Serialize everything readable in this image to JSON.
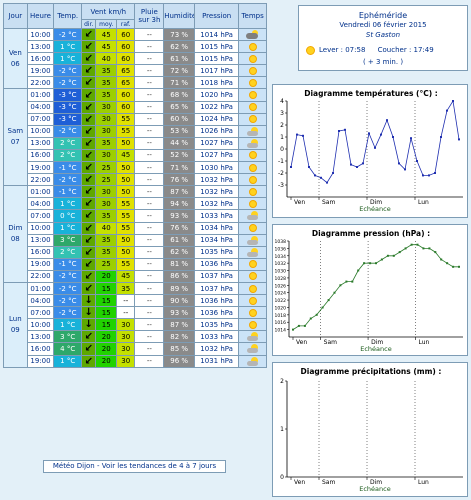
{
  "table": {
    "headers": {
      "day": "Jour",
      "time": "Heure",
      "temp": "Temp.",
      "wind": "Vent km/h",
      "dir": "dir.",
      "avg": "moy.",
      "gust": "raf.",
      "rain": "Pluie sur 3h",
      "humidity": "Humidité",
      "pressure": "Pression",
      "weather": "Temps"
    },
    "days": [
      {
        "label": "Ven 06",
        "rows": [
          {
            "time": "10:00",
            "temp": "-2 °C",
            "dir": "↙",
            "avg": "45",
            "gust": "60",
            "rain": "--",
            "hum": "73 %",
            "pres": "1014 hPa",
            "icon": "cloudy"
          },
          {
            "time": "13:00",
            "temp": "1 °C",
            "dir": "↙",
            "avg": "45",
            "gust": "60",
            "rain": "--",
            "hum": "62 %",
            "pres": "1015 hPa",
            "icon": "sun"
          },
          {
            "time": "16:00",
            "temp": "1 °C",
            "dir": "↙",
            "avg": "40",
            "gust": "60",
            "rain": "--",
            "hum": "61 %",
            "pres": "1015 hPa",
            "icon": "sun"
          },
          {
            "time": "19:00",
            "temp": "-2 °C",
            "dir": "↙",
            "avg": "35",
            "gust": "65",
            "rain": "--",
            "hum": "72 %",
            "pres": "1017 hPa",
            "icon": "sun"
          },
          {
            "time": "22:00",
            "temp": "-2 °C",
            "dir": "↙",
            "avg": "35",
            "gust": "65",
            "rain": "--",
            "hum": "71 %",
            "pres": "1018 hPa",
            "icon": "sun"
          }
        ]
      },
      {
        "label": "Sam 07",
        "rows": [
          {
            "time": "01:00",
            "temp": "-3 °C",
            "dir": "↙",
            "avg": "35",
            "gust": "60",
            "rain": "--",
            "hum": "68 %",
            "pres": "1020 hPa",
            "icon": "sun"
          },
          {
            "time": "04:00",
            "temp": "-3 °C",
            "dir": "↙",
            "avg": "30",
            "gust": "60",
            "rain": "--",
            "hum": "65 %",
            "pres": "1022 hPa",
            "icon": "sun"
          },
          {
            "time": "07:00",
            "temp": "-3 °C",
            "dir": "↙",
            "avg": "30",
            "gust": "55",
            "rain": "--",
            "hum": "60 %",
            "pres": "1024 hPa",
            "icon": "sun"
          },
          {
            "time": "10:00",
            "temp": "-2 °C",
            "dir": "↙",
            "avg": "30",
            "gust": "55",
            "rain": "--",
            "hum": "53 %",
            "pres": "1026 hPa",
            "icon": "partly"
          },
          {
            "time": "13:00",
            "temp": "2 °C",
            "dir": "↙",
            "avg": "35",
            "gust": "50",
            "rain": "--",
            "hum": "44 %",
            "pres": "1027 hPa",
            "icon": "partly"
          },
          {
            "time": "16:00",
            "temp": "2 °C",
            "dir": "↙",
            "avg": "30",
            "gust": "45",
            "rain": "--",
            "hum": "52 %",
            "pres": "1027 hPa",
            "icon": "sun"
          },
          {
            "time": "19:00",
            "temp": "-1 °C",
            "dir": "↙",
            "avg": "25",
            "gust": "50",
            "rain": "--",
            "hum": "71 %",
            "pres": "1030 hPa",
            "icon": "sun"
          },
          {
            "time": "22:00",
            "temp": "-2 °C",
            "dir": "↙",
            "avg": "25",
            "gust": "50",
            "rain": "--",
            "hum": "76 %",
            "pres": "1032 hPa",
            "icon": "sun"
          }
        ]
      },
      {
        "label": "Dim 08",
        "rows": [
          {
            "time": "01:00",
            "temp": "-1 °C",
            "dir": "↙",
            "avg": "30",
            "gust": "50",
            "rain": "--",
            "hum": "87 %",
            "pres": "1032 hPa",
            "icon": "sun"
          },
          {
            "time": "04:00",
            "temp": "1 °C",
            "dir": "↙",
            "avg": "30",
            "gust": "55",
            "rain": "--",
            "hum": "94 %",
            "pres": "1032 hPa",
            "icon": "sun"
          },
          {
            "time": "07:00",
            "temp": "0 °C",
            "dir": "↙",
            "avg": "35",
            "gust": "55",
            "rain": "--",
            "hum": "93 %",
            "pres": "1033 hPa",
            "icon": "partly"
          },
          {
            "time": "10:00",
            "temp": "1 °C",
            "dir": "↙",
            "avg": "40",
            "gust": "55",
            "rain": "--",
            "hum": "76 %",
            "pres": "1034 hPa",
            "icon": "sun"
          },
          {
            "time": "13:00",
            "temp": "3 °C",
            "dir": "↙",
            "avg": "35",
            "gust": "50",
            "rain": "--",
            "hum": "61 %",
            "pres": "1034 hPa",
            "icon": "partly"
          },
          {
            "time": "16:00",
            "temp": "2 °C",
            "dir": "↙",
            "avg": "35",
            "gust": "50",
            "rain": "--",
            "hum": "62 %",
            "pres": "1035 hPa",
            "icon": "partly"
          },
          {
            "time": "19:00",
            "temp": "-1 °C",
            "dir": "↙",
            "avg": "25",
            "gust": "55",
            "rain": "--",
            "hum": "81 %",
            "pres": "1036 hPa",
            "icon": "sun"
          },
          {
            "time": "22:00",
            "temp": "-2 °C",
            "dir": "↙",
            "avg": "20",
            "gust": "45",
            "rain": "--",
            "hum": "86 %",
            "pres": "1037 hPa",
            "icon": "sun"
          }
        ]
      },
      {
        "label": "Lun 09",
        "rows": [
          {
            "time": "01:00",
            "temp": "-2 °C",
            "dir": "↙",
            "avg": "15",
            "gust": "35",
            "rain": "--",
            "hum": "89 %",
            "pres": "1037 hPa",
            "icon": "sun"
          },
          {
            "time": "04:00",
            "temp": "-2 °C",
            "dir": "↓",
            "avg": "15",
            "gust": "--",
            "rain": "--",
            "hum": "90 %",
            "pres": "1036 hPa",
            "icon": "sun"
          },
          {
            "time": "07:00",
            "temp": "-2 °C",
            "dir": "↓",
            "avg": "15",
            "gust": "--",
            "rain": "--",
            "hum": "93 %",
            "pres": "1036 hPa",
            "icon": "sun"
          },
          {
            "time": "10:00",
            "temp": "1 °C",
            "dir": "↓",
            "avg": "15",
            "gust": "30",
            "rain": "--",
            "hum": "87 %",
            "pres": "1035 hPa",
            "icon": "sun"
          },
          {
            "time": "13:00",
            "temp": "3 °C",
            "dir": "↙",
            "avg": "20",
            "gust": "30",
            "rain": "--",
            "hum": "82 %",
            "pres": "1033 hPa",
            "icon": "partly"
          },
          {
            "time": "16:00",
            "temp": "4 °C",
            "dir": "↙",
            "avg": "20",
            "gust": "30",
            "rain": "--",
            "hum": "85 %",
            "pres": "1032 hPa",
            "icon": "partly"
          },
          {
            "time": "19:00",
            "temp": "1 °C",
            "dir": "↙",
            "avg": "20",
            "gust": "30",
            "rain": "--",
            "hum": "96 %",
            "pres": "1031 hPa",
            "icon": "partly"
          }
        ]
      }
    ]
  },
  "footer_link": "Météo Dijon - Voir les tendances de 4 à 7 jours",
  "ephemeride": {
    "title": "Ephéméride",
    "date": "Vendredi 06 février 2015",
    "saint": "St Gaston",
    "sunrise": "Lever : 07:58",
    "sunset": "Coucher : 17:49",
    "delta": "( + 3 min. )"
  },
  "colors": {
    "temp_deep_cold": "#1f5fd6",
    "temp_cold": "#3a8ce8",
    "temp_zero": "#18b2d9",
    "temp_mild": "#33c2b2",
    "temp_warm": "#2ea86a",
    "wind_green": "#21d200",
    "wind_yellowgreen": "#9ccf00",
    "wind_lightgreen": "#c4e000",
    "gust_yellow": "#e1e100",
    "chart_line_temp": "#1f2fb0",
    "chart_line_pres": "#2a7a2a"
  },
  "chart_data": [
    {
      "type": "line",
      "title": "Diagramme températures (°C) :",
      "xlabel": "Echéance",
      "x_ticks": [
        "Ven",
        "Sam",
        "Dim",
        "Lun"
      ],
      "ylim": [
        -4,
        4
      ],
      "y_ticks": [
        -3,
        -2,
        -1,
        0,
        1,
        2,
        3,
        4
      ],
      "values": [
        -1.5,
        1.2,
        1.1,
        -1.5,
        -2.2,
        -2.4,
        -2.8,
        -2.0,
        1.5,
        1.6,
        -1.3,
        -1.5,
        -1.2,
        1.3,
        0.1,
        1.2,
        2.4,
        1.0,
        -1.2,
        -1.7,
        0.9,
        -1.0,
        -2.2,
        -2.2,
        -2.0,
        1.0,
        3.2,
        4.0,
        0.8
      ]
    },
    {
      "type": "line",
      "title": "Diagramme pression (hPa) :",
      "xlabel": "Echéance",
      "x_ticks": [
        "Ven",
        "Sam",
        "Dim",
        "Lun"
      ],
      "ylim": [
        1012,
        1038
      ],
      "y_ticks": [
        1014,
        1016,
        1018,
        1020,
        1022,
        1024,
        1026,
        1028,
        1030,
        1032,
        1034,
        1036,
        1038
      ],
      "values": [
        1014,
        1015,
        1015,
        1017,
        1018,
        1020,
        1022,
        1024,
        1026,
        1027,
        1027,
        1030,
        1032,
        1032,
        1032,
        1033,
        1034,
        1034,
        1035,
        1036,
        1037,
        1037,
        1036,
        1036,
        1035,
        1033,
        1032,
        1031,
        1031
      ]
    },
    {
      "type": "line",
      "title": "Diagramme précipitations (mm) :",
      "xlabel": "Echéance",
      "x_ticks": [
        "Ven",
        "Sam",
        "Dim",
        "Lun"
      ],
      "ylim": [
        0,
        2
      ],
      "y_ticks": [
        0,
        1,
        2
      ],
      "values": []
    }
  ]
}
